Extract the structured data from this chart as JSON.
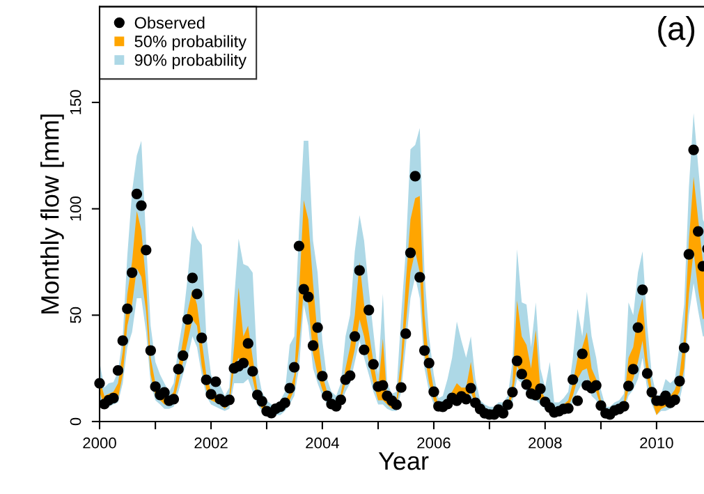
{
  "chart_data": {
    "type": "scatter",
    "xlabel": "Year",
    "ylabel": "Monthly flow [mm]",
    "annotations": [
      "(a)"
    ],
    "legend": "top left",
    "x": [
      "2000-01",
      "2000-02",
      "2000-03",
      "2000-04",
      "2000-05",
      "2000-06",
      "2000-07",
      "2000-08",
      "2000-09",
      "2000-10",
      "2000-11",
      "2000-12",
      "2001-01",
      "2001-02",
      "2001-03",
      "2001-04",
      "2001-05",
      "2001-06",
      "2001-07",
      "2001-08",
      "2001-09",
      "2001-10",
      "2001-11",
      "2001-12",
      "2002-01",
      "2002-02",
      "2002-03",
      "2002-04",
      "2002-05",
      "2002-06",
      "2002-07",
      "2002-08",
      "2002-09",
      "2002-10",
      "2002-11",
      "2002-12",
      "2003-01",
      "2003-02",
      "2003-03",
      "2003-04",
      "2003-05",
      "2003-06",
      "2003-07",
      "2003-08",
      "2003-09",
      "2003-10",
      "2003-11",
      "2003-12",
      "2004-01",
      "2004-02",
      "2004-03",
      "2004-04",
      "2004-05",
      "2004-06",
      "2004-07",
      "2004-08",
      "2004-09",
      "2004-10",
      "2004-11",
      "2004-12",
      "2005-01",
      "2005-02",
      "2005-03",
      "2005-04",
      "2005-05",
      "2005-06",
      "2005-07",
      "2005-08",
      "2005-09",
      "2005-10",
      "2005-11",
      "2005-12",
      "2006-01",
      "2006-02",
      "2006-03",
      "2006-04",
      "2006-05",
      "2006-06",
      "2006-07",
      "2006-08",
      "2006-09",
      "2006-10",
      "2006-11",
      "2006-12",
      "2007-01",
      "2007-02",
      "2007-03",
      "2007-04",
      "2007-05",
      "2007-06",
      "2007-07",
      "2007-08",
      "2007-09",
      "2007-10",
      "2007-11",
      "2007-12",
      "2008-01",
      "2008-02",
      "2008-03",
      "2008-04",
      "2008-05",
      "2008-06",
      "2008-07",
      "2008-08",
      "2008-09",
      "2008-10",
      "2008-11",
      "2008-12",
      "2009-01",
      "2009-02",
      "2009-03",
      "2009-04",
      "2009-05",
      "2009-06",
      "2009-07",
      "2009-08",
      "2009-09",
      "2009-10",
      "2009-11",
      "2009-12",
      "2010-01",
      "2010-02",
      "2010-03",
      "2010-04",
      "2010-05",
      "2010-06",
      "2010-07",
      "2010-08",
      "2010-09",
      "2010-10",
      "2010-11",
      "2010-12"
    ],
    "xlim": [
      "2000-01-01",
      "2010-12-01"
    ],
    "xticks": [
      "2000",
      {
        "value": "2001",
        "label": null
      },
      "2002",
      {
        "value": "2003",
        "label": null
      },
      "2004",
      {
        "value": "2005",
        "label": null
      },
      "2006",
      {
        "value": "2007",
        "label": null
      },
      "2008",
      {
        "value": "2009",
        "label": null
      },
      "2010"
    ],
    "ylim": [
      0,
      195
    ],
    "yticks": [
      0,
      50,
      100,
      150
    ],
    "series": [
      {
        "name": "Observed",
        "color": "#000000",
        "marker": "circle",
        "values": [
          18,
          8.2,
          10,
          11,
          24,
          38,
          53,
          70,
          107,
          101.5,
          80.6,
          33.4,
          16.4,
          12.5,
          13.7,
          9.8,
          10.5,
          24.6,
          31,
          48,
          67.5,
          60,
          39.3,
          19.6,
          12.8,
          18.7,
          10.5,
          9.2,
          10.2,
          25,
          26,
          27.5,
          36.7,
          23.6,
          12.5,
          9.5,
          4.9,
          4,
          6,
          7,
          8.8,
          15.7,
          25.5,
          82.5,
          62.2,
          58.6,
          35.7,
          44.2,
          21.3,
          12.1,
          8.2,
          7.2,
          10.2,
          19.7,
          21.6,
          40,
          71,
          33.7,
          52.4,
          26.9,
          16.4,
          17,
          12.1,
          9.8,
          7.9,
          16,
          41.3,
          79.3,
          115.3,
          67.8,
          33.4,
          27.5,
          14,
          7.2,
          6.9,
          8.2,
          11.1,
          9.8,
          11.8,
          10.5,
          15.7,
          8.8,
          5.9,
          3.9,
          3.3,
          3.3,
          5.6,
          3.9,
          7.9,
          13.8,
          28.5,
          22.3,
          17.4,
          13.1,
          12.4,
          15.4,
          9.2,
          6.6,
          4.3,
          4.9,
          5.9,
          6.2,
          19.7,
          9.8,
          31.8,
          17,
          15.7,
          17,
          7.5,
          3.9,
          3.3,
          5.2,
          5.9,
          7.2,
          16.7,
          24.6,
          44.2,
          61.9,
          22.6,
          13.8,
          9.8,
          9.8,
          12.1,
          8.8,
          10.2,
          19,
          34.7,
          78.6,
          127.7,
          89.4,
          73,
          81.2
        ]
      },
      {
        "name": "50% probability",
        "type": "area",
        "color": "#ffa500",
        "lower": [
          14,
          7,
          9,
          9,
          11,
          22,
          45,
          55,
          72,
          68,
          52,
          22,
          12,
          10,
          8,
          8,
          9,
          18,
          28,
          38,
          48,
          45,
          26,
          15,
          10,
          9,
          8,
          6,
          8,
          25,
          30,
          25,
          28,
          20,
          10,
          6,
          5,
          4,
          4,
          5,
          6,
          10,
          15,
          35,
          62,
          55,
          32,
          22,
          15,
          10,
          7,
          6,
          10,
          18,
          24,
          34,
          48,
          40,
          28,
          18,
          10,
          10,
          8,
          6,
          7,
          20,
          45,
          70,
          80,
          70,
          32,
          18,
          10,
          6,
          6,
          8,
          10,
          12,
          11,
          11,
          14,
          8,
          5,
          4,
          3,
          3,
          4,
          4,
          6,
          12,
          26,
          22,
          18,
          13,
          14,
          10,
          8,
          6,
          4,
          4,
          5,
          7,
          12,
          20,
          24,
          25,
          16,
          14,
          7,
          3,
          3,
          4,
          5,
          6,
          15,
          20,
          28,
          38,
          20,
          10,
          3,
          6,
          7,
          8,
          10,
          14,
          25,
          60,
          80,
          62,
          48,
          50
        ],
        "values": [
          null,
          null,
          null,
          null,
          null,
          null,
          null,
          null,
          null,
          null,
          null,
          null,
          null,
          null,
          null,
          null,
          null,
          null,
          null,
          null,
          null,
          null,
          null,
          null,
          null,
          null,
          null,
          null,
          null,
          null,
          null,
          null,
          null,
          null,
          null,
          null,
          null,
          null,
          null,
          null,
          null,
          null,
          null,
          null,
          null,
          null,
          null,
          null,
          null,
          null,
          null,
          null,
          null,
          null,
          null,
          null,
          null,
          null,
          null,
          null,
          null,
          null,
          null,
          null,
          null,
          null,
          null,
          null,
          null,
          null,
          null,
          null,
          null,
          null,
          null,
          null,
          null,
          null,
          null,
          null,
          null,
          null,
          null,
          null,
          null,
          null,
          null,
          null,
          null,
          null,
          null,
          null,
          null,
          null,
          null,
          null,
          null,
          null,
          null,
          null,
          null,
          null,
          null,
          null,
          null,
          null,
          null,
          null,
          null,
          null,
          null,
          null,
          null,
          null,
          null,
          null,
          null,
          null,
          null,
          null,
          null,
          null,
          null,
          null,
          null,
          null,
          null,
          null,
          null,
          null,
          null,
          null
        ],
        "upper": [
          20,
          12,
          13,
          14,
          18,
          33,
          60,
          75,
          99,
          90,
          65,
          30,
          18,
          14,
          12,
          11,
          14,
          26,
          38,
          52,
          62,
          55,
          38,
          22,
          14,
          13,
          11,
          9,
          12,
          35,
          63,
          40,
          45,
          30,
          15,
          9,
          7,
          6,
          6,
          7,
          9,
          14,
          22,
          60,
          104,
          95,
          65,
          40,
          22,
          14,
          10,
          9,
          13,
          25,
          35,
          50,
          75,
          55,
          42,
          28,
          15,
          39,
          11,
          9,
          10,
          30,
          65,
          95,
          105,
          106,
          50,
          28,
          15,
          8,
          8,
          11,
          14,
          18,
          16,
          16,
          28,
          12,
          7,
          6,
          5,
          5,
          6,
          6,
          8,
          18,
          57,
          40,
          36,
          25,
          43,
          15,
          11,
          9,
          6,
          6,
          8,
          10,
          18,
          30,
          35,
          42,
          25,
          20,
          10,
          5,
          5,
          6,
          7,
          9,
          30,
          35,
          50,
          58,
          30,
          15,
          8,
          9,
          12,
          12,
          15,
          22,
          40,
          85,
          115,
          95,
          75,
          70
        ]
      },
      {
        "name": "90% probability",
        "type": "area",
        "color": "#add8e6",
        "lower": [
          10,
          6,
          7,
          8,
          9,
          18,
          35,
          42,
          58,
          58,
          42,
          18,
          10,
          8,
          6,
          6,
          7,
          14,
          22,
          30,
          40,
          35,
          22,
          12,
          8,
          7,
          6,
          5,
          6,
          18,
          18,
          18,
          20,
          14,
          8,
          5,
          4,
          3,
          3,
          3,
          5,
          8,
          12,
          25,
          55,
          45,
          25,
          18,
          12,
          8,
          6,
          5,
          8,
          14,
          18,
          28,
          38,
          30,
          22,
          14,
          8,
          8,
          6,
          5,
          5,
          14,
          35,
          58,
          68,
          58,
          25,
          14,
          8,
          5,
          5,
          6,
          8,
          9,
          9,
          9,
          10,
          6,
          4,
          3,
          2,
          2,
          3,
          3,
          5,
          9,
          20,
          18,
          14,
          10,
          10,
          8,
          6,
          5,
          3,
          3,
          4,
          5,
          9,
          14,
          18,
          20,
          12,
          10,
          5,
          2,
          2,
          3,
          4,
          5,
          12,
          15,
          20,
          30,
          15,
          8,
          3,
          5,
          5,
          6,
          8,
          10,
          20,
          50,
          65,
          52,
          40,
          40
        ],
        "values": [
          null,
          null,
          null,
          null,
          null,
          null,
          null,
          null,
          null,
          null,
          null,
          null,
          null,
          null,
          null,
          null,
          null,
          null,
          null,
          null,
          null,
          null,
          null,
          null,
          null,
          null,
          null,
          null,
          null,
          null,
          null,
          null,
          null,
          null,
          null,
          null,
          null,
          null,
          null,
          null,
          null,
          null,
          null,
          null,
          null,
          null,
          null,
          null,
          null,
          null,
          null,
          null,
          null,
          null,
          null,
          null,
          null,
          null,
          null,
          null,
          null,
          null,
          null,
          null,
          null,
          null,
          null,
          null,
          null,
          null,
          null,
          null,
          null,
          null,
          null,
          null,
          null,
          null,
          null,
          null,
          null,
          null,
          null,
          null,
          null,
          null,
          null,
          null,
          null,
          null,
          null,
          null,
          null,
          null,
          null,
          null,
          null,
          null,
          null,
          null,
          null,
          null,
          null,
          null,
          null,
          null,
          null,
          null,
          null,
          null,
          null,
          null,
          null,
          null,
          null,
          null,
          null,
          null,
          null,
          null,
          null,
          null,
          null,
          null,
          null,
          null,
          null,
          null,
          null,
          null,
          null,
          null
        ],
        "upper": [
          28,
          16,
          18,
          18.5,
          23.5,
          40,
          78,
          108,
          125,
          132,
          85,
          45,
          28,
          22,
          18,
          14,
          18,
          35,
          48,
          68,
          92,
          86,
          83,
          40,
          22,
          18,
          17,
          12,
          16,
          57,
          86,
          74,
          73,
          70,
          25,
          14,
          10,
          8,
          8,
          10,
          14,
          36,
          40,
          90,
          132,
          132,
          85,
          70,
          38,
          20,
          14,
          12,
          18,
          40,
          50,
          80,
          97,
          85,
          62,
          42,
          22,
          60,
          18,
          13,
          14,
          50,
          80,
          128,
          130,
          138,
          70,
          40,
          22,
          11,
          12,
          20,
          30,
          47,
          38,
          30,
          40,
          20,
          10,
          8,
          7,
          7,
          9,
          9,
          12,
          28,
          81,
          56,
          55,
          35,
          56,
          25,
          16,
          28,
          9,
          9,
          11,
          14,
          30,
          53,
          40,
          61,
          40,
          30,
          15,
          7,
          7,
          9,
          10,
          13,
          56,
          50,
          70,
          80,
          45,
          22,
          12,
          13,
          20,
          18,
          20,
          36,
          55,
          110,
          145,
          120,
          95,
          90
        ]
      }
    ]
  }
}
